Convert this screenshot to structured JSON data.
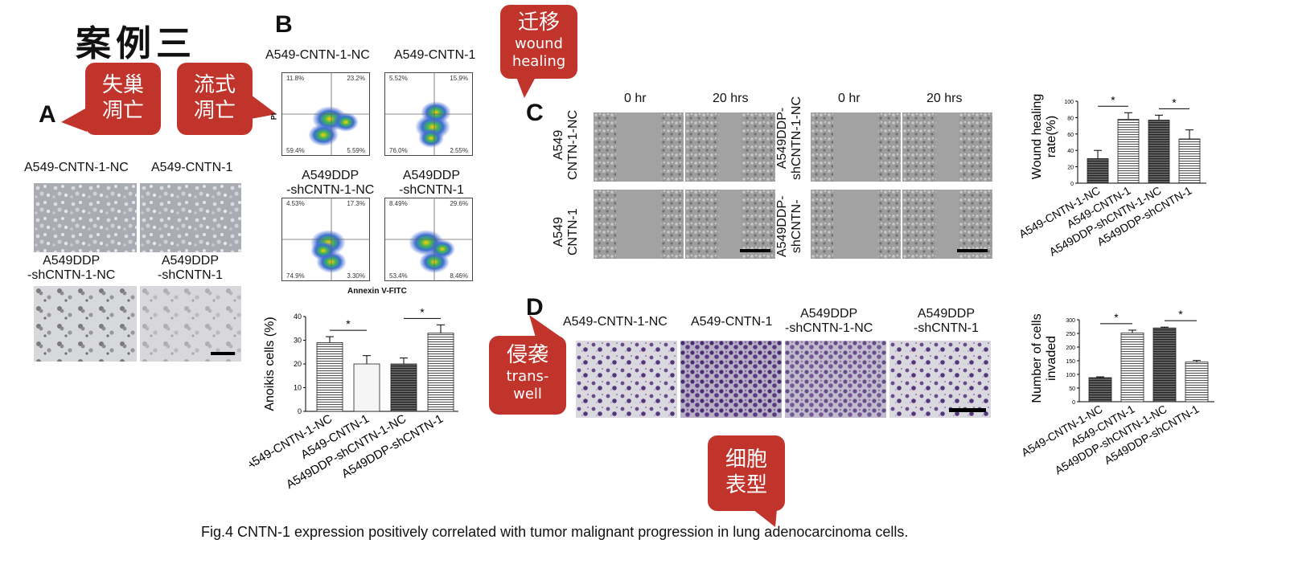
{
  "header": {
    "title_cn": "案例三"
  },
  "callouts": {
    "anoikis": [
      "失巢",
      "凋亡"
    ],
    "flow": [
      "流式",
      "凋亡"
    ],
    "migration": {
      "cn": "迁移",
      "en": [
        "wound",
        "healing"
      ]
    },
    "invasion": {
      "cn": "侵袭",
      "en": [
        "trans-",
        "well"
      ]
    },
    "phenotype": [
      "细胞",
      "表型"
    ]
  },
  "panel_a": {
    "label": "A",
    "top_labels": [
      "A549-CNTN-1-NC",
      "A549-CNTN-1"
    ],
    "bottom_labels": [
      [
        "A549DDP",
        "-shCNTN-1-NC"
      ],
      [
        "A549DDP",
        "-shCNTN-1"
      ]
    ]
  },
  "panel_b": {
    "label": "B",
    "top_labels": [
      "A549-CNTN-1-NC",
      "A549-CNTN-1"
    ],
    "bottom_labels": [
      [
        "A549DDP",
        "-shCNTN-1-NC"
      ],
      [
        "A549DDP",
        "-shCNTN-1"
      ]
    ],
    "flow_quadrants": [
      [
        "11.8%",
        "23.2%",
        "59.4%",
        "5.59%"
      ],
      [
        "5.52%",
        "15.9%",
        "76.0%",
        "2.55%"
      ],
      [
        "4.53%",
        "17.3%",
        "74.9%",
        "3.30%"
      ],
      [
        "8.49%",
        "29.6%",
        "53.4%",
        "8.46%"
      ]
    ],
    "flow_xlabel": "Annexin V-FITC",
    "flow_ylabel": "PI"
  },
  "panel_c": {
    "label": "C",
    "time_labels": [
      "0 hr",
      "20 hrs",
      "0 hr",
      "20 hrs"
    ],
    "row_labels_left": [
      [
        "A549",
        "CNTN-1-NC"
      ],
      [
        "A549",
        "CNTN-1"
      ]
    ],
    "row_labels_right": [
      [
        "A549DDP-",
        "shCNTN-1-NC"
      ],
      [
        "A549DDP-",
        "shCNTN-"
      ]
    ]
  },
  "panel_d": {
    "label": "D",
    "top_labels": [
      "A549-CNTN-1-NC",
      "A549-CNTN-1",
      [
        "A549DDP",
        "-shCNTN-1-NC"
      ],
      [
        "A549DDP",
        "-shCNTN-1"
      ]
    ]
  },
  "caption": "Fig.4 CNTN-1 expression positively correlated with tumor malignant progression in lung adenocarcinoma cells.",
  "chart_data": [
    {
      "type": "bar",
      "id": "anoikis",
      "categories": [
        "A549-CNTN-1-NC",
        "A549-CNTN-1",
        "A549DDP-shCNTN-1-NC",
        "A549DDP-shCNTN-1"
      ],
      "values": [
        29,
        20,
        20,
        33
      ],
      "errors": [
        2.5,
        3.5,
        2.5,
        3.5
      ],
      "ylabel": "Anoikis cells (%)",
      "ylim": [
        0,
        40
      ],
      "yticks": [
        "0",
        "10",
        "20",
        "30",
        "40"
      ],
      "significance": [
        "*",
        "*"
      ]
    },
    {
      "type": "bar",
      "id": "wound",
      "categories": [
        "A549-CNTN-1-NC",
        "A549-CNTN-1",
        "A549DDP-shCNTN-1-NC",
        "A549DDP-shCNTN-1"
      ],
      "values": [
        30,
        78,
        77,
        54
      ],
      "errors": [
        10,
        8,
        6,
        11
      ],
      "ylabel": "Wound healing rate(%)",
      "ylim": [
        0,
        100
      ],
      "yticks": [
        "0",
        "20",
        "40",
        "60",
        "80",
        "100"
      ],
      "significance": [
        "*",
        "*"
      ]
    },
    {
      "type": "bar",
      "id": "invasion",
      "categories": [
        "A549-CNTN-1-NC",
        "A549-CNTN-1",
        "A549DDP-shCNTN-1-NC",
        "A549DDP-shCNTN-1"
      ],
      "values": [
        88,
        252,
        270,
        145
      ],
      "errors": [
        3,
        10,
        3,
        6
      ],
      "ylabel": "Number of cells invaded",
      "ylim": [
        0,
        300
      ],
      "yticks": [
        "0",
        "50",
        "100",
        "150",
        "200",
        "250",
        "300"
      ],
      "significance": [
        "*",
        "*"
      ]
    }
  ]
}
